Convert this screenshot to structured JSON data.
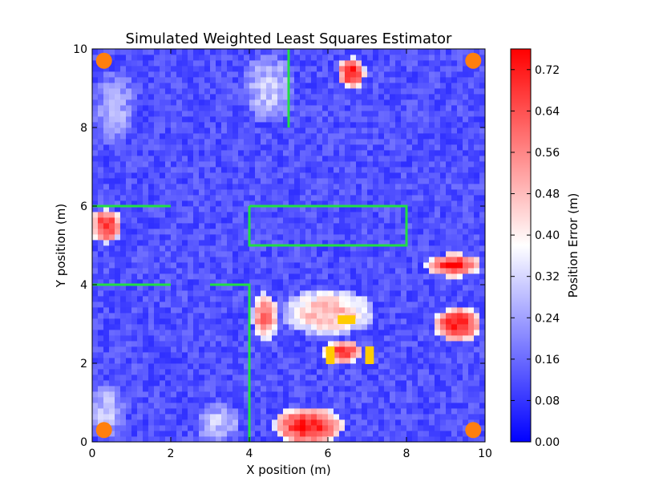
{
  "chart_data": {
    "type": "heatmap",
    "title": "Simulated Weighted Least Squares Estimator",
    "xlabel": "X position (m)",
    "ylabel": "Y position (m)",
    "xlim": [
      0,
      10
    ],
    "ylim": [
      0,
      10
    ],
    "x_ticks": [
      "0",
      "2",
      "4",
      "6",
      "8",
      "10"
    ],
    "y_ticks": [
      "0",
      "2",
      "4",
      "6",
      "8",
      "10"
    ],
    "colorbar": {
      "label": "Position Error (m)",
      "min": 0.0,
      "max": 0.76,
      "ticks": [
        "0.00",
        "0.08",
        "0.16",
        "0.24",
        "0.32",
        "0.40",
        "0.48",
        "0.56",
        "0.64",
        "0.72"
      ],
      "colors": [
        "#0000ff",
        "#ffffff",
        "#ff0000"
      ]
    },
    "anchors": [
      {
        "x": 0.3,
        "y": 9.7
      },
      {
        "x": 9.7,
        "y": 9.7
      },
      {
        "x": 0.3,
        "y": 0.3
      },
      {
        "x": 9.7,
        "y": 0.3
      }
    ],
    "anchor_color": "#ff7f0e",
    "walls": [
      [
        [
          5.0,
          10.0
        ],
        [
          5.0,
          8.0
        ]
      ],
      [
        [
          0.0,
          6.0
        ],
        [
          2.0,
          6.0
        ]
      ],
      [
        [
          4.0,
          6.0
        ],
        [
          8.0,
          6.0
        ],
        [
          8.0,
          5.0
        ],
        [
          4.0,
          5.0
        ],
        [
          4.0,
          6.0
        ]
      ],
      [
        [
          0.0,
          4.0
        ],
        [
          2.0,
          4.0
        ]
      ],
      [
        [
          3.0,
          4.0
        ],
        [
          4.0,
          4.0
        ],
        [
          4.0,
          0.0
        ]
      ]
    ],
    "wall_color": "#22dd44",
    "obstacles": [
      {
        "x": 6.25,
        "y": 3.0,
        "w": 0.45,
        "h": 0.22
      },
      {
        "x": 5.95,
        "y": 1.98,
        "w": 0.22,
        "h": 0.45
      },
      {
        "x": 6.95,
        "y": 1.98,
        "w": 0.22,
        "h": 0.45
      }
    ],
    "obstacle_color": "#ffcc00",
    "error_hotspots": [
      {
        "x": 0.35,
        "y": 5.5,
        "rx": 0.4,
        "ry": 0.45,
        "value": 0.7
      },
      {
        "x": 6.6,
        "y": 9.4,
        "rx": 0.35,
        "ry": 0.4,
        "value": 0.72
      },
      {
        "x": 9.2,
        "y": 4.5,
        "rx": 0.7,
        "ry": 0.3,
        "value": 0.72
      },
      {
        "x": 9.3,
        "y": 3.0,
        "rx": 0.6,
        "ry": 0.45,
        "value": 0.72
      },
      {
        "x": 5.5,
        "y": 0.4,
        "rx": 0.9,
        "ry": 0.5,
        "value": 0.74
      },
      {
        "x": 6.0,
        "y": 3.3,
        "rx": 1.2,
        "ry": 0.6,
        "value": 0.5
      },
      {
        "x": 4.4,
        "y": 3.2,
        "rx": 0.35,
        "ry": 0.6,
        "value": 0.62
      },
      {
        "x": 6.4,
        "y": 2.3,
        "rx": 0.5,
        "ry": 0.3,
        "value": 0.7
      },
      {
        "x": 0.35,
        "y": 0.8,
        "rx": 0.5,
        "ry": 0.7,
        "value": 0.3
      },
      {
        "x": 3.2,
        "y": 0.5,
        "rx": 0.6,
        "ry": 0.5,
        "value": 0.3
      },
      {
        "x": 4.5,
        "y": 9.0,
        "rx": 0.7,
        "ry": 0.9,
        "value": 0.3
      },
      {
        "x": 0.6,
        "y": 8.5,
        "rx": 0.6,
        "ry": 1.0,
        "value": 0.25
      }
    ],
    "baseline_error": 0.12
  }
}
